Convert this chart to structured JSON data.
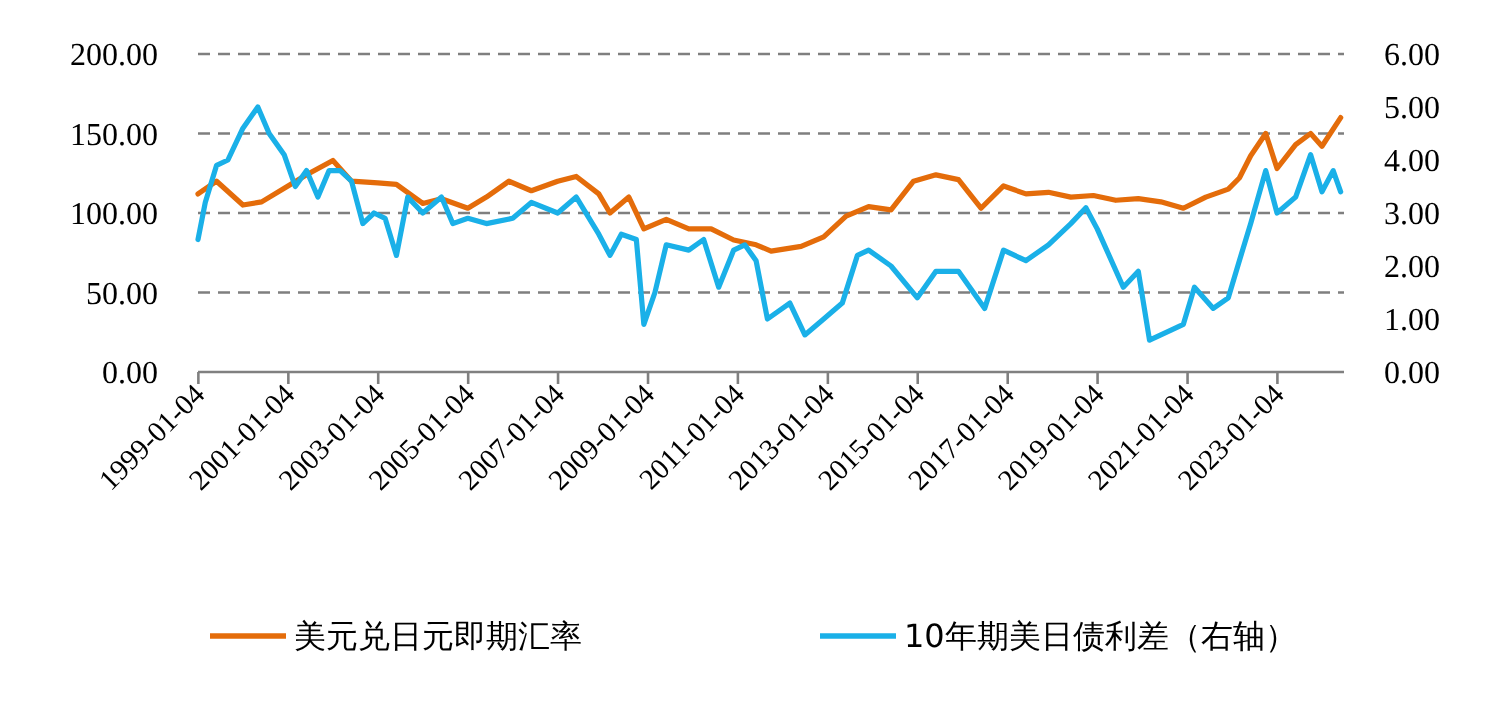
{
  "chart_data": {
    "type": "line",
    "legend": "bottom",
    "grid": "y",
    "line_style": "solid",
    "xlim": [
      "1999-01-01",
      "2024-06-28"
    ],
    "xticks": [
      {
        "value": "1999-01-04",
        "label": "1999-01-04"
      },
      {
        "value": "2001-01-04",
        "label": "2001-01-04"
      },
      {
        "value": "2003-01-04",
        "label": "2003-01-04"
      },
      {
        "value": "2005-01-04",
        "label": "2005-01-04"
      },
      {
        "value": "2007-01-04",
        "label": "2007-01-04"
      },
      {
        "value": "2009-01-04",
        "label": "2009-01-04"
      },
      {
        "value": "2011-01-04",
        "label": "2011-01-04"
      },
      {
        "value": "2013-01-04",
        "label": "2013-01-04"
      },
      {
        "value": "2015-01-04",
        "label": "2015-01-04"
      },
      {
        "value": "2017-01-04",
        "label": "2017-01-04"
      },
      {
        "value": "2019-01-04",
        "label": "2019-01-04"
      },
      {
        "value": "2021-01-04",
        "label": "2021-01-04"
      },
      {
        "value": "2023-01-04",
        "label": "2023-01-04"
      }
    ],
    "ylim": [
      0,
      200
    ],
    "yticks": [
      {
        "value": 0,
        "label": "0.00"
      },
      {
        "value": 50,
        "label": "50.00"
      },
      {
        "value": 100,
        "label": "100.00"
      },
      {
        "value": 150,
        "label": "150.00"
      },
      {
        "value": 200,
        "label": "200.00"
      }
    ],
    "y2lim": [
      0,
      6
    ],
    "y2ticks": [
      {
        "value": 0,
        "label": "0.00"
      },
      {
        "value": 1,
        "label": "1.00"
      },
      {
        "value": 2,
        "label": "2.00"
      },
      {
        "value": 3,
        "label": "3.00"
      },
      {
        "value": 4,
        "label": "4.00"
      },
      {
        "value": 5,
        "label": "5.00"
      },
      {
        "value": 6,
        "label": "6.00"
      }
    ],
    "series": [
      {
        "name": "美元兑日元即期汇率",
        "color": "#e46c0a",
        "x": [
          "1999-01",
          "1999-06",
          "2000-01",
          "2000-06",
          "2001-01",
          "2001-06",
          "2002-01",
          "2002-06",
          "2003-01",
          "2003-06",
          "2004-01",
          "2004-06",
          "2005-01",
          "2005-06",
          "2005-12",
          "2006-06",
          "2007-01",
          "2007-06",
          "2007-12",
          "2008-03",
          "2008-08",
          "2008-12",
          "2009-06",
          "2009-12",
          "2010-06",
          "2010-12",
          "2011-06",
          "2011-10",
          "2012-06",
          "2012-12",
          "2013-06",
          "2013-12",
          "2014-06",
          "2014-12",
          "2015-06",
          "2015-12",
          "2016-06",
          "2016-12",
          "2017-06",
          "2017-12",
          "2018-06",
          "2018-12",
          "2019-06",
          "2019-12",
          "2020-06",
          "2020-12",
          "2021-06",
          "2021-12",
          "2022-03",
          "2022-06",
          "2022-10",
          "2023-01",
          "2023-06",
          "2023-10",
          "2024-01",
          "2024-06"
        ],
        "values": [
          112,
          120,
          105,
          107,
          117,
          124,
          133,
          120,
          119,
          118,
          106,
          109,
          103,
          110,
          120,
          114,
          120,
          123,
          112,
          100,
          110,
          90,
          96,
          90,
          90,
          83,
          80,
          76,
          79,
          85,
          98,
          104,
          102,
          120,
          124,
          121,
          103,
          117,
          112,
          113,
          110,
          111,
          108,
          109,
          107,
          103,
          110,
          115,
          122,
          136,
          150,
          128,
          143,
          150,
          142,
          160
        ]
      },
      {
        "name": "10年期美日债利差（右轴）",
        "color": "#1ab0e8",
        "axis": "y2",
        "x": [
          "1999-01",
          "1999-03",
          "1999-06",
          "1999-09",
          "2000-01",
          "2000-05",
          "2000-08",
          "2000-12",
          "2001-03",
          "2001-06",
          "2001-09",
          "2001-12",
          "2002-03",
          "2002-06",
          "2002-09",
          "2002-12",
          "2003-03",
          "2003-06",
          "2003-09",
          "2004-01",
          "2004-06",
          "2004-09",
          "2005-01",
          "2005-06",
          "2006-01",
          "2006-06",
          "2007-01",
          "2007-06",
          "2007-12",
          "2008-03",
          "2008-06",
          "2008-10",
          "2008-12",
          "2009-03",
          "2009-06",
          "2009-12",
          "2010-04",
          "2010-08",
          "2010-12",
          "2011-03",
          "2011-06",
          "2011-09",
          "2012-03",
          "2012-07",
          "2012-12",
          "2013-05",
          "2013-09",
          "2013-12",
          "2014-06",
          "2015-01",
          "2015-06",
          "2015-12",
          "2016-07",
          "2016-12",
          "2017-06",
          "2017-12",
          "2018-06",
          "2018-10",
          "2019-01",
          "2019-08",
          "2019-12",
          "2020-03",
          "2020-06",
          "2020-12",
          "2021-03",
          "2021-08",
          "2021-12",
          "2022-03",
          "2022-06",
          "2022-10",
          "2023-01",
          "2023-06",
          "2023-10",
          "2024-01",
          "2024-04",
          "2024-06"
        ],
        "values": [
          2.5,
          3.2,
          3.9,
          4.0,
          4.6,
          5.0,
          4.5,
          4.1,
          3.5,
          3.8,
          3.3,
          3.8,
          3.8,
          3.6,
          2.8,
          3.0,
          2.9,
          2.2,
          3.3,
          3.0,
          3.3,
          2.8,
          2.9,
          2.8,
          2.9,
          3.2,
          3.0,
          3.3,
          2.6,
          2.2,
          2.6,
          2.5,
          0.9,
          1.5,
          2.4,
          2.3,
          2.5,
          1.6,
          2.3,
          2.4,
          2.1,
          1.0,
          1.3,
          0.7,
          1.0,
          1.3,
          2.2,
          2.3,
          2.0,
          1.4,
          1.9,
          1.9,
          1.2,
          2.3,
          2.1,
          2.4,
          2.8,
          3.1,
          2.7,
          1.6,
          1.9,
          0.6,
          0.7,
          0.9,
          1.6,
          1.2,
          1.4,
          2.1,
          2.8,
          3.8,
          3.0,
          3.3,
          4.1,
          3.4,
          3.8,
          3.4
        ]
      }
    ]
  }
}
